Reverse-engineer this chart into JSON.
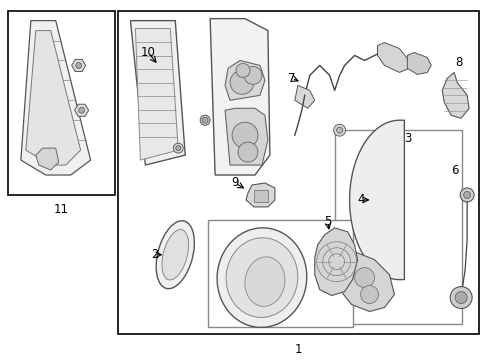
{
  "background": "#ffffff",
  "border_color": "#000000",
  "lc": "#000000",
  "ec": "#555555",
  "fc_light": "#eeeeee",
  "fc_mid": "#d8d8d8",
  "fc_dark": "#cccccc"
}
